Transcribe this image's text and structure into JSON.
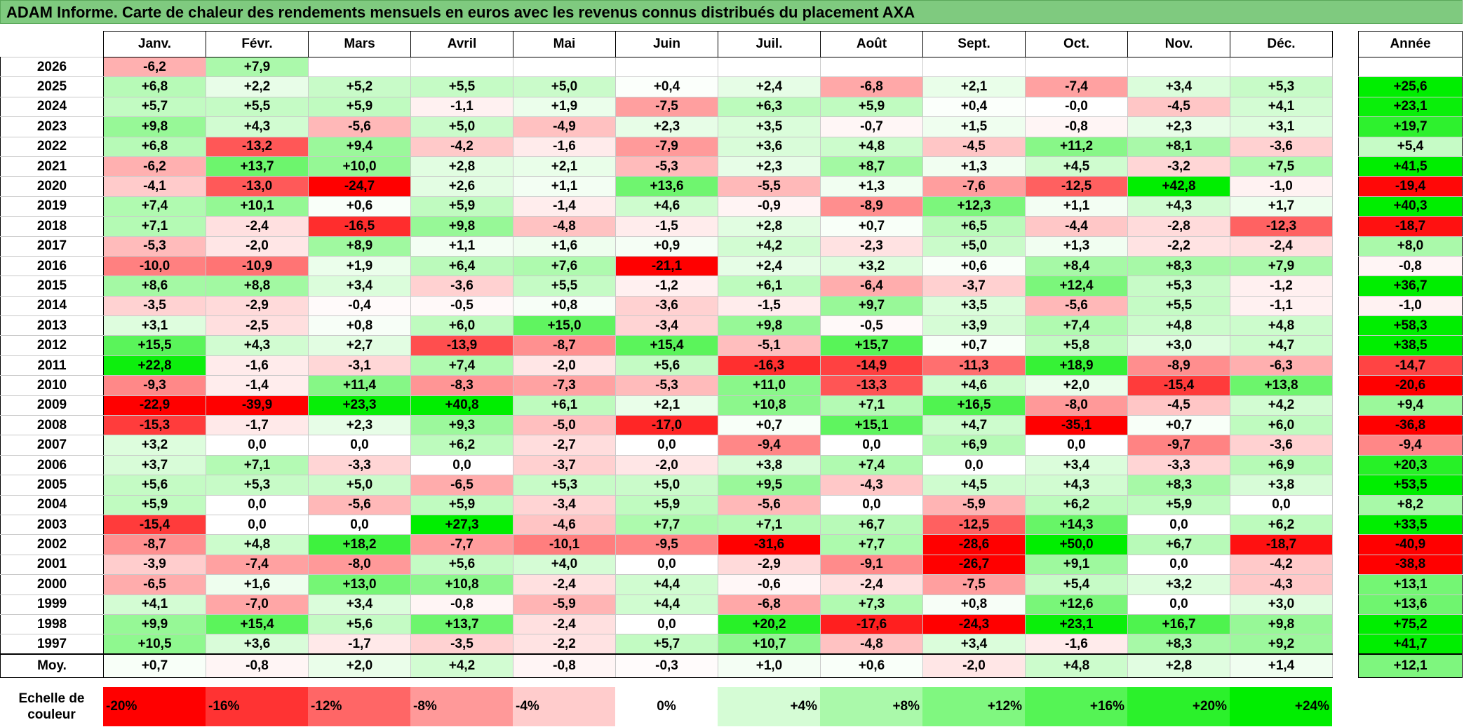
{
  "title": "ADAM Informe. Carte de chaleur des rendements mensuels en euros avec les revenus connus distribués du placement AXA",
  "months": [
    "Janv.",
    "Févr.",
    "Mars",
    "Avril",
    "Mai",
    "Juin",
    "Juil.",
    "Août",
    "Sept.",
    "Oct.",
    "Nov.",
    "Déc."
  ],
  "annual_label": "Année",
  "average_label": "Moy.",
  "rows": [
    {
      "year": "2026",
      "values": [
        "-6,2",
        "+7,9",
        "",
        "",
        "",
        "",
        "",
        "",
        "",
        "",
        "",
        ""
      ],
      "annual": ""
    },
    {
      "year": "2025",
      "values": [
        "+6,8",
        "+2,2",
        "+5,2",
        "+5,5",
        "+5,0",
        "+0,4",
        "+2,4",
        "-6,8",
        "+2,1",
        "-7,4",
        "+3,4",
        "+5,3"
      ],
      "annual": "+25,6"
    },
    {
      "year": "2024",
      "values": [
        "+5,7",
        "+5,5",
        "+5,9",
        "-1,1",
        "+1,9",
        "-7,5",
        "+6,3",
        "+5,9",
        "+0,4",
        "-0,0",
        "-4,5",
        "+4,1"
      ],
      "annual": "+23,1"
    },
    {
      "year": "2023",
      "values": [
        "+9,8",
        "+4,3",
        "-5,6",
        "+5,0",
        "-4,9",
        "+2,3",
        "+3,5",
        "-0,7",
        "+1,5",
        "-0,8",
        "+2,3",
        "+3,1"
      ],
      "annual": "+19,7"
    },
    {
      "year": "2022",
      "values": [
        "+6,8",
        "-13,2",
        "+9,4",
        "-4,2",
        "-1,6",
        "-7,9",
        "+3,6",
        "+4,8",
        "-4,5",
        "+11,2",
        "+8,1",
        "-3,6"
      ],
      "annual": "+5,4"
    },
    {
      "year": "2021",
      "values": [
        "-6,2",
        "+13,7",
        "+10,0",
        "+2,8",
        "+2,1",
        "-5,3",
        "+2,3",
        "+8,7",
        "+1,3",
        "+4,5",
        "-3,2",
        "+7,5"
      ],
      "annual": "+41,5"
    },
    {
      "year": "2020",
      "values": [
        "-4,1",
        "-13,0",
        "-24,7",
        "+2,6",
        "+1,1",
        "+13,6",
        "-5,5",
        "+1,3",
        "-7,6",
        "-12,5",
        "+42,8",
        "-1,0"
      ],
      "annual": "-19,4"
    },
    {
      "year": "2019",
      "values": [
        "+7,4",
        "+10,1",
        "+0,6",
        "+5,9",
        "-1,4",
        "+4,6",
        "-0,9",
        "-8,9",
        "+12,3",
        "+1,1",
        "+4,3",
        "+1,7"
      ],
      "annual": "+40,3"
    },
    {
      "year": "2018",
      "values": [
        "+7,1",
        "-2,4",
        "-16,5",
        "+9,8",
        "-4,8",
        "-1,5",
        "+2,8",
        "+0,7",
        "+6,5",
        "-4,4",
        "-2,8",
        "-12,3"
      ],
      "annual": "-18,7"
    },
    {
      "year": "2017",
      "values": [
        "-5,3",
        "-2,0",
        "+8,9",
        "+1,1",
        "+1,6",
        "+0,9",
        "+4,2",
        "-2,3",
        "+5,0",
        "+1,3",
        "-2,2",
        "-2,4"
      ],
      "annual": "+8,0"
    },
    {
      "year": "2016",
      "values": [
        "-10,0",
        "-10,9",
        "+1,9",
        "+6,4",
        "+7,6",
        "-21,1",
        "+2,4",
        "+3,2",
        "+0,6",
        "+8,4",
        "+8,3",
        "+7,9"
      ],
      "annual": "-0,8"
    },
    {
      "year": "2015",
      "values": [
        "+8,6",
        "+8,8",
        "+3,4",
        "-3,6",
        "+5,5",
        "-1,2",
        "+6,1",
        "-6,4",
        "-3,7",
        "+12,4",
        "+5,3",
        "-1,2"
      ],
      "annual": "+36,7"
    },
    {
      "year": "2014",
      "values": [
        "-3,5",
        "-2,9",
        "-0,4",
        "-0,5",
        "+0,8",
        "-3,6",
        "-1,5",
        "+9,7",
        "+3,5",
        "-5,6",
        "+5,5",
        "-1,1"
      ],
      "annual": "-1,0"
    },
    {
      "year": "2013",
      "values": [
        "+3,1",
        "-2,5",
        "+0,8",
        "+6,0",
        "+15,0",
        "-3,4",
        "+9,8",
        "-0,5",
        "+3,9",
        "+7,4",
        "+4,8",
        "+4,8"
      ],
      "annual": "+58,3"
    },
    {
      "year": "2012",
      "values": [
        "+15,5",
        "+4,3",
        "+2,7",
        "-13,9",
        "-8,7",
        "+15,4",
        "-5,1",
        "+15,7",
        "+0,7",
        "+5,8",
        "+3,0",
        "+4,7"
      ],
      "annual": "+38,5"
    },
    {
      "year": "2011",
      "values": [
        "+22,8",
        "-1,6",
        "-3,1",
        "+7,4",
        "-2,0",
        "+5,6",
        "-16,3",
        "-14,9",
        "-11,3",
        "+18,9",
        "-8,9",
        "-6,3"
      ],
      "annual": "-14,7"
    },
    {
      "year": "2010",
      "values": [
        "-9,3",
        "-1,4",
        "+11,4",
        "-8,3",
        "-7,3",
        "-5,3",
        "+11,0",
        "-13,3",
        "+4,6",
        "+2,0",
        "-15,4",
        "+13,8"
      ],
      "annual": "-20,6"
    },
    {
      "year": "2009",
      "values": [
        "-22,9",
        "-39,9",
        "+23,3",
        "+40,8",
        "+6,1",
        "+2,1",
        "+10,8",
        "+7,1",
        "+16,5",
        "-8,0",
        "-4,5",
        "+4,2"
      ],
      "annual": "+9,4"
    },
    {
      "year": "2008",
      "values": [
        "-15,3",
        "-1,7",
        "+2,3",
        "+9,3",
        "-5,0",
        "-17,0",
        "+0,7",
        "+15,1",
        "+4,7",
        "-35,1",
        "+0,7",
        "+6,0"
      ],
      "annual": "-36,8"
    },
    {
      "year": "2007",
      "values": [
        "+3,2",
        "0,0",
        "0,0",
        "+6,2",
        "-2,7",
        "0,0",
        "-9,4",
        "0,0",
        "+6,9",
        "0,0",
        "-9,7",
        "-3,6"
      ],
      "annual": "-9,4"
    },
    {
      "year": "2006",
      "values": [
        "+3,7",
        "+7,1",
        "-3,3",
        "0,0",
        "-3,7",
        "-2,0",
        "+3,8",
        "+7,4",
        "0,0",
        "+3,4",
        "-3,3",
        "+6,9"
      ],
      "annual": "+20,3"
    },
    {
      "year": "2005",
      "values": [
        "+5,6",
        "+5,3",
        "+5,0",
        "-6,5",
        "+5,3",
        "+5,0",
        "+9,5",
        "-4,3",
        "+4,5",
        "+4,3",
        "+8,3",
        "+3,8"
      ],
      "annual": "+53,5"
    },
    {
      "year": "2004",
      "values": [
        "+5,9",
        "0,0",
        "-5,6",
        "+5,9",
        "-3,4",
        "+5,9",
        "-5,6",
        "0,0",
        "-5,9",
        "+6,2",
        "+5,9",
        "0,0"
      ],
      "annual": "+8,2"
    },
    {
      "year": "2003",
      "values": [
        "-15,4",
        "0,0",
        "0,0",
        "+27,3",
        "-4,6",
        "+7,7",
        "+7,1",
        "+6,7",
        "-12,5",
        "+14,3",
        "0,0",
        "+6,2"
      ],
      "annual": "+33,5"
    },
    {
      "year": "2002",
      "values": [
        "-8,7",
        "+4,8",
        "+18,2",
        "-7,7",
        "-10,1",
        "-9,5",
        "-31,6",
        "+7,7",
        "-28,6",
        "+50,0",
        "+6,7",
        "-18,7"
      ],
      "annual": "-40,9"
    },
    {
      "year": "2001",
      "values": [
        "-3,9",
        "-7,4",
        "-8,0",
        "+5,6",
        "+4,0",
        "0,0",
        "-2,9",
        "-9,1",
        "-26,7",
        "+9,1",
        "0,0",
        "-4,2"
      ],
      "annual": "-38,8"
    },
    {
      "year": "2000",
      "values": [
        "-6,5",
        "+1,6",
        "+13,0",
        "+10,8",
        "-2,4",
        "+4,4",
        "-0,6",
        "-2,4",
        "-7,5",
        "+5,4",
        "+3,2",
        "-4,3"
      ],
      "annual": "+13,1"
    },
    {
      "year": "1999",
      "values": [
        "+4,1",
        "-7,0",
        "+3,4",
        "-0,8",
        "-5,9",
        "+4,4",
        "-6,8",
        "+7,3",
        "+0,8",
        "+12,6",
        "0,0",
        "+3,0"
      ],
      "annual": "+13,6"
    },
    {
      "year": "1998",
      "values": [
        "+9,9",
        "+15,4",
        "+5,6",
        "+13,7",
        "-2,4",
        "0,0",
        "+20,2",
        "-17,6",
        "-24,3",
        "+23,1",
        "+16,7",
        "+9,8"
      ],
      "annual": "+75,2"
    },
    {
      "year": "1997",
      "values": [
        "+10,5",
        "+3,6",
        "-1,7",
        "-3,5",
        "-2,2",
        "+5,7",
        "+10,7",
        "-4,8",
        "+3,4",
        "-1,6",
        "+8,3",
        "+9,2"
      ],
      "annual": "+41,7"
    }
  ],
  "averages": {
    "values": [
      "+0,7",
      "-0,8",
      "+2,0",
      "+4,2",
      "-0,8",
      "-0,3",
      "+1,0",
      "+0,6",
      "-2,0",
      "+4,8",
      "+2,8",
      "+1,4"
    ],
    "annual": "+12,1"
  },
  "scale": {
    "label": "Echelle de couleur",
    "stops": [
      "-20%",
      "-16%",
      "-12%",
      "-8%",
      "-4%",
      "0%",
      "+4%",
      "+8%",
      "+12%",
      "+16%",
      "+20%",
      "+24%"
    ]
  },
  "colors": {
    "title_bg": "#7fca7f",
    "negative_max": "#ff0000",
    "positive_max": "#00ee00",
    "neutral": "#ffffff"
  },
  "chart_data": {
    "type": "heatmap",
    "title": "ADAM Informe. Carte de chaleur des rendements mensuels en euros avec les revenus connus distribués du placement AXA",
    "x": [
      "Janv.",
      "Févr.",
      "Mars",
      "Avril",
      "Mai",
      "Juin",
      "Juil.",
      "Août",
      "Sept.",
      "Oct.",
      "Nov.",
      "Déc.",
      "Année"
    ],
    "y": [
      "2026",
      "2025",
      "2024",
      "2023",
      "2022",
      "2021",
      "2020",
      "2019",
      "2018",
      "2017",
      "2016",
      "2015",
      "2014",
      "2013",
      "2012",
      "2011",
      "2010",
      "2009",
      "2008",
      "2007",
      "2006",
      "2005",
      "2004",
      "2003",
      "2002",
      "2001",
      "2000",
      "1999",
      "1998",
      "1997",
      "Moy."
    ],
    "color_scale_min": -20,
    "color_scale_max": 24
  }
}
